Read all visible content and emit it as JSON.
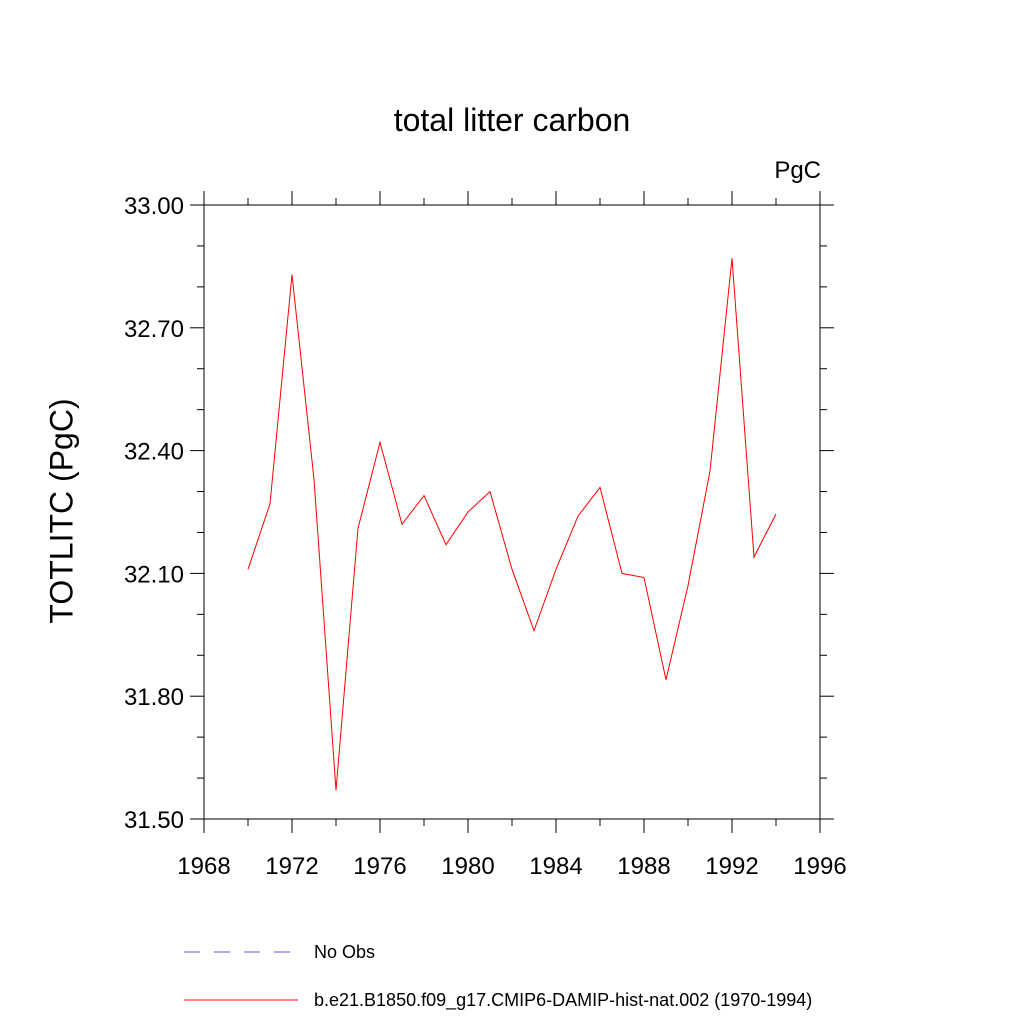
{
  "chart_data": {
    "type": "line",
    "title": "total litter carbon",
    "units_label": "PgC",
    "ylabel": "TOTLITC  (PgC)",
    "xlabel": "",
    "xlim": [
      1968,
      1996
    ],
    "ylim": [
      31.5,
      33.0
    ],
    "xticks": [
      1968,
      1972,
      1976,
      1980,
      1984,
      1988,
      1992,
      1996
    ],
    "xtick_labels": [
      "1968",
      "1972",
      "1976",
      "1980",
      "1984",
      "1988",
      "1992",
      "1996"
    ],
    "yticks": [
      31.5,
      31.8,
      32.1,
      32.4,
      32.7,
      33.0
    ],
    "ytick_labels": [
      "31.50",
      "31.80",
      "32.10",
      "32.40",
      "32.70",
      "33.00"
    ],
    "grid": false,
    "legend_position": "bottom",
    "series": [
      {
        "name": "No Obs",
        "color": "#5b5bd6",
        "dash": "dashed",
        "x": [],
        "y": []
      },
      {
        "name": "b.e21.B1850.f09_g17.CMIP6-DAMIP-hist-nat.002 (1970-1994)",
        "color": "#ff0000",
        "dash": "solid",
        "x": [
          1970,
          1971,
          1972,
          1973,
          1974,
          1975,
          1976,
          1977,
          1978,
          1979,
          1980,
          1981,
          1982,
          1983,
          1984,
          1985,
          1986,
          1987,
          1988,
          1989,
          1990,
          1991,
          1992,
          1993,
          1994
        ],
        "y": [
          32.11,
          32.27,
          32.83,
          32.33,
          31.57,
          32.21,
          32.42,
          32.22,
          32.29,
          32.17,
          32.25,
          32.3,
          32.11,
          31.96,
          32.11,
          32.24,
          32.31,
          32.1,
          32.09,
          31.84,
          32.07,
          32.35,
          32.87,
          32.14,
          32.245
        ]
      }
    ]
  }
}
